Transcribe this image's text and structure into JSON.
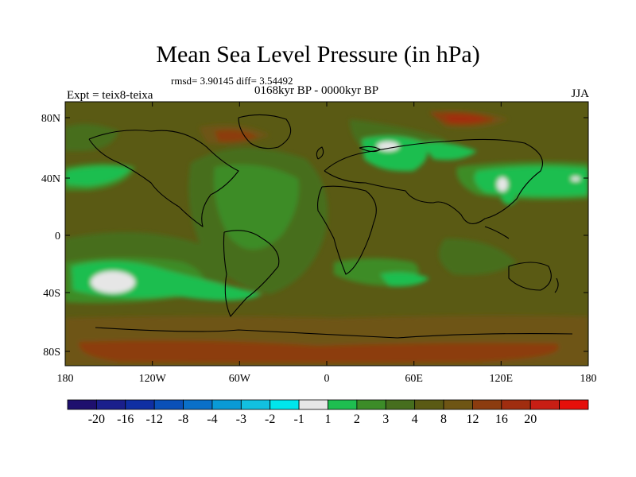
{
  "title": "Mean Sea Level Pressure (in hPa)",
  "stats": "rmsd= 3.90145 diff= 3.54492",
  "subtitle": "0168kyr BP - 0000kyr BP",
  "experiment": "Expt = teix8-teixa",
  "season": "JJA",
  "map": {
    "lat_ticks": [
      "80N",
      "40N",
      "0",
      "40S",
      "80S"
    ],
    "lon_ticks": [
      "180",
      "120W",
      "60W",
      "0",
      "60E",
      "120E",
      "180"
    ]
  },
  "colorbar": {
    "colors": [
      "#1e0f6e",
      "#1a1f8c",
      "#0f2fa3",
      "#0a50b8",
      "#0a70c8",
      "#0a9ad6",
      "#12c0e0",
      "#00e6ec",
      "#e6e6e6",
      "#1ebe50",
      "#3c8c28",
      "#466e1e",
      "#5a5a14",
      "#6e5514",
      "#8c3c0f",
      "#a02d0f",
      "#c81e14",
      "#e60f0a"
    ],
    "labels": [
      "-20",
      "-16",
      "-12",
      "-8",
      "-4",
      "-3",
      "-2",
      "-1",
      "1",
      "2",
      "3",
      "4",
      "8",
      "12",
      "16",
      "20"
    ]
  }
}
